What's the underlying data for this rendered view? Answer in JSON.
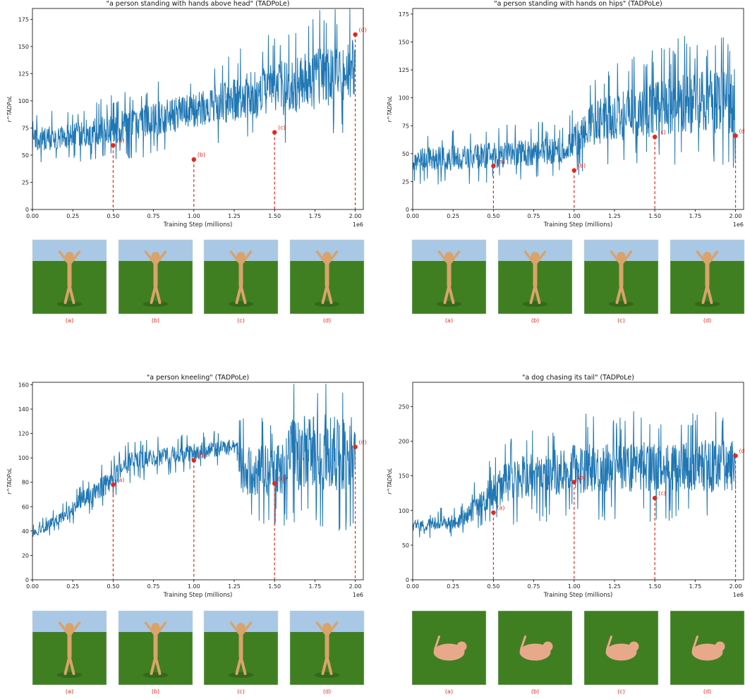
{
  "chart_data": [
    {
      "type": "line",
      "title": "\"a person standing with hands above head\" (TADPoLe)",
      "xlabel": "Training Step (millions)",
      "ylabel": "r^TADPoL",
      "x_offset_text": "1e6",
      "xlim": [
        0,
        2.05
      ],
      "ylim": [
        0,
        185
      ],
      "xticks": [
        0,
        0.25,
        0.5,
        0.75,
        1.0,
        1.25,
        1.5,
        1.75,
        2.0
      ],
      "xtick_labels": [
        "0.00",
        "0.25",
        "0.50",
        "0.75",
        "1.00",
        "1.25",
        "1.50",
        "1.75",
        "2.00"
      ],
      "yticks": [
        0,
        25,
        50,
        75,
        100,
        125,
        150,
        175
      ],
      "yrange_ctrl": [
        [
          0,
          48,
          80
        ],
        [
          0.25,
          52,
          85
        ],
        [
          0.5,
          55,
          95
        ],
        [
          0.75,
          60,
          105
        ],
        [
          1.0,
          68,
          115
        ],
        [
          1.25,
          72,
          130
        ],
        [
          1.5,
          74,
          145
        ],
        [
          1.75,
          80,
          160
        ],
        [
          2.0,
          88,
          175
        ]
      ],
      "markers": [
        {
          "x": 0.5,
          "y": 59,
          "label": "(a)"
        },
        {
          "x": 1.0,
          "y": 46,
          "label": "(b)"
        },
        {
          "x": 1.5,
          "y": 71,
          "label": "(c)"
        },
        {
          "x": 2.0,
          "y": 161,
          "label": "(d)"
        }
      ],
      "captions": [
        "(a)",
        "(b)",
        "(c)",
        "(d)"
      ],
      "thumb_style": "sky"
    },
    {
      "type": "line",
      "title": "\"a person standing with hands on hips\" (TADPoLe)",
      "xlabel": "Training Step (millions)",
      "ylabel": "r^TADPoL",
      "x_offset_text": "1e6",
      "xlim": [
        0,
        2.05
      ],
      "ylim": [
        0,
        180
      ],
      "xticks": [
        0,
        0.25,
        0.5,
        0.75,
        1.0,
        1.25,
        1.5,
        1.75,
        2.0
      ],
      "xtick_labels": [
        "0.00",
        "0.25",
        "0.50",
        "0.75",
        "1.00",
        "1.25",
        "1.50",
        "1.75",
        "2.00"
      ],
      "yticks": [
        0,
        25,
        50,
        75,
        100,
        125,
        150,
        175
      ],
      "yrange_ctrl": [
        [
          0,
          28,
          60
        ],
        [
          0.25,
          30,
          62
        ],
        [
          0.5,
          32,
          65
        ],
        [
          0.75,
          34,
          68
        ],
        [
          0.95,
          36,
          70
        ],
        [
          1.1,
          48,
          105
        ],
        [
          1.5,
          55,
          125
        ],
        [
          1.75,
          56,
          135
        ],
        [
          2.0,
          55,
          140
        ]
      ],
      "markers": [
        {
          "x": 0.5,
          "y": 39,
          "label": "(a)"
        },
        {
          "x": 1.0,
          "y": 35,
          "label": "(b)"
        },
        {
          "x": 1.5,
          "y": 65,
          "label": "(c)"
        },
        {
          "x": 2.0,
          "y": 66,
          "label": "(d)"
        }
      ],
      "captions": [
        "(a)",
        "(b)",
        "(c)",
        "(d)"
      ],
      "thumb_style": "sky"
    },
    {
      "type": "line",
      "title": "\"a person kneeling\" (TADPoLe)",
      "xlabel": "Training Step (millions)",
      "ylabel": "r^TADPoL",
      "x_offset_text": "1e6",
      "xlim": [
        0,
        2.05
      ],
      "ylim": [
        0,
        162
      ],
      "xticks": [
        0,
        0.25,
        0.5,
        0.75,
        1.0,
        1.25,
        1.5,
        1.75,
        2.0
      ],
      "xtick_labels": [
        "0.00",
        "0.25",
        "0.50",
        "0.75",
        "1.00",
        "1.25",
        "1.50",
        "1.75",
        "2.00"
      ],
      "yticks": [
        0,
        20,
        40,
        60,
        80,
        100,
        120,
        140,
        160
      ],
      "yrange_ctrl": [
        [
          0,
          33,
          42
        ],
        [
          0.2,
          45,
          60
        ],
        [
          0.3,
          55,
          75
        ],
        [
          0.45,
          65,
          90
        ],
        [
          0.6,
          85,
          108
        ],
        [
          1.0,
          95,
          115
        ],
        [
          1.25,
          100,
          118
        ],
        [
          1.3,
          60,
          118
        ],
        [
          1.55,
          60,
          120
        ],
        [
          1.6,
          60,
          148
        ],
        [
          2.0,
          60,
          150
        ]
      ],
      "markers": [
        {
          "x": 0.5,
          "y": 78,
          "label": "(a)"
        },
        {
          "x": 1.0,
          "y": 98,
          "label": "(b)"
        },
        {
          "x": 1.5,
          "y": 79,
          "label": "(c)"
        },
        {
          "x": 2.0,
          "y": 109,
          "label": "(d)"
        }
      ],
      "captions": [
        "(a)",
        "(b)",
        "(c)",
        "(d)"
      ],
      "thumb_style": "sky"
    },
    {
      "type": "line",
      "title": "\"a dog chasing its tail\" (TADPoLe)",
      "xlabel": "Training Step (millions)",
      "ylabel": "r^TADPoL",
      "x_offset_text": "1e6",
      "xlim": [
        0,
        2.05
      ],
      "ylim": [
        0,
        285
      ],
      "xticks": [
        0,
        0.25,
        0.5,
        0.75,
        1.0,
        1.25,
        1.5,
        1.75,
        2.0
      ],
      "xtick_labels": [
        "0.00",
        "0.25",
        "0.50",
        "0.75",
        "1.00",
        "1.25",
        "1.50",
        "1.75",
        "2.00"
      ],
      "yticks": [
        0,
        50,
        100,
        150,
        200,
        250
      ],
      "yrange_ctrl": [
        [
          0,
          65,
          90
        ],
        [
          0.3,
          70,
          100
        ],
        [
          0.45,
          85,
          150
        ],
        [
          0.6,
          100,
          190
        ],
        [
          1.0,
          110,
          210
        ],
        [
          1.5,
          110,
          215
        ],
        [
          2.0,
          110,
          220
        ]
      ],
      "markers": [
        {
          "x": 0.5,
          "y": 97,
          "label": "(a)"
        },
        {
          "x": 1.0,
          "y": 141,
          "label": "(b)"
        },
        {
          "x": 1.5,
          "y": 118,
          "label": "(c)"
        },
        {
          "x": 2.0,
          "y": 179,
          "label": "(d)"
        }
      ],
      "captions": [
        "(a)",
        "(b)",
        "(c)",
        "(d)"
      ],
      "thumb_style": "grass"
    }
  ],
  "colors": {
    "line": "#1f77b4",
    "marker": "#e8261c",
    "sky": "#a9c8e6",
    "grass": "#3f7f22"
  }
}
